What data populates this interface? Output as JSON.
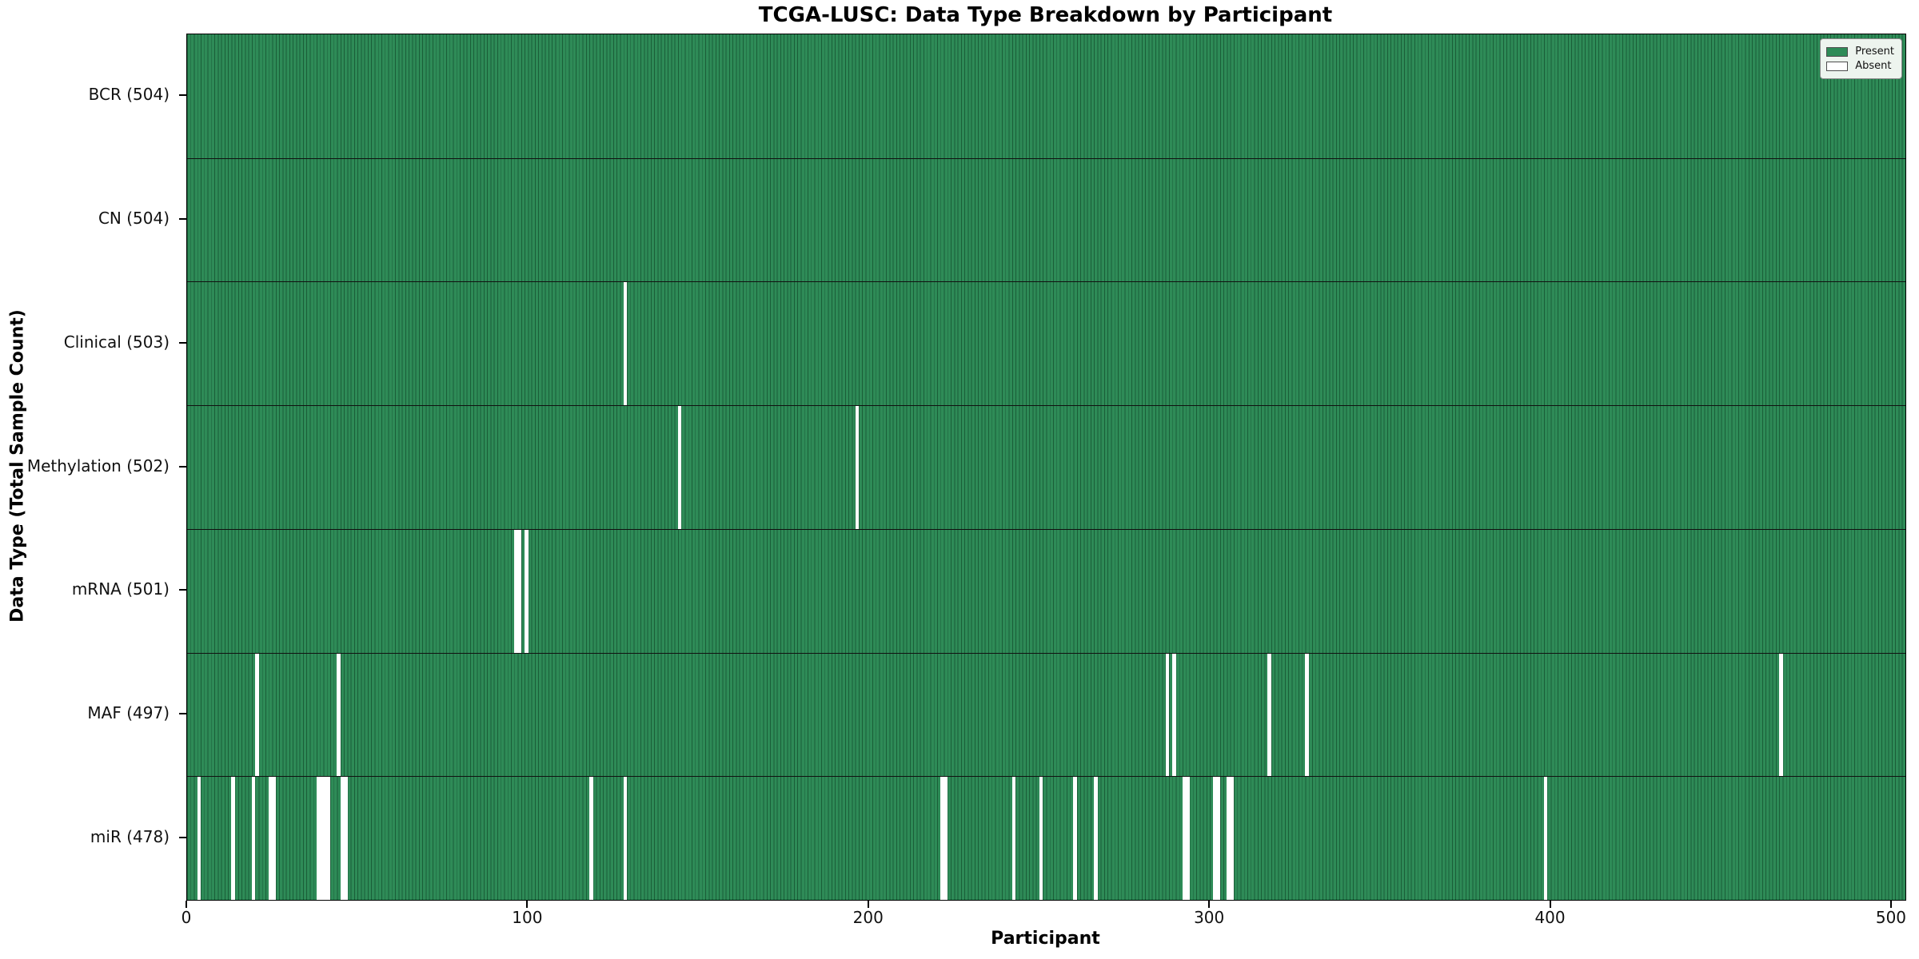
{
  "chart_data": {
    "type": "heatmap",
    "title": "TCGA-LUSC: Data Type Breakdown by Participant",
    "xlabel": "Participant",
    "ylabel": "Data Type (Total Sample Count)",
    "x_ticks": [
      0,
      100,
      200,
      300,
      400,
      500
    ],
    "x_range": [
      0,
      504
    ],
    "n_participants": 504,
    "grid": false,
    "legend_position": "upper right",
    "legend": [
      {
        "label": "Present",
        "color": "#2e8b57"
      },
      {
        "label": "Absent",
        "color": "#ffffff"
      }
    ],
    "colors": {
      "present_fill": "#2e8b57",
      "bar_edge": "#1a5e38",
      "absent_fill": "#ffffff",
      "row_separator": "#111111"
    },
    "rows": [
      {
        "label": "BCR (504)",
        "data_type": "BCR",
        "total_samples": 504,
        "absent_participants": []
      },
      {
        "label": "CN (504)",
        "data_type": "CN",
        "total_samples": 504,
        "absent_participants": []
      },
      {
        "label": "Clinical (503)",
        "data_type": "Clinical",
        "total_samples": 503,
        "absent_participants": [
          128
        ]
      },
      {
        "label": "Methylation (502)",
        "data_type": "Methylation",
        "total_samples": 502,
        "absent_participants": [
          144,
          196
        ]
      },
      {
        "label": "mRNA (501)",
        "data_type": "mRNA",
        "total_samples": 501,
        "absent_participants": [
          96,
          97,
          99
        ]
      },
      {
        "label": "MAF (497)",
        "data_type": "MAF",
        "total_samples": 497,
        "absent_participants": [
          20,
          44,
          287,
          289,
          317,
          328,
          467
        ]
      },
      {
        "label": "miR (478)",
        "data_type": "miR",
        "total_samples": 478,
        "absent_participants": [
          3,
          13,
          19,
          24,
          25,
          38,
          39,
          40,
          41,
          45,
          46,
          118,
          128,
          221,
          222,
          242,
          250,
          260,
          266,
          292,
          293,
          301,
          302,
          305,
          306,
          398
        ]
      }
    ]
  }
}
